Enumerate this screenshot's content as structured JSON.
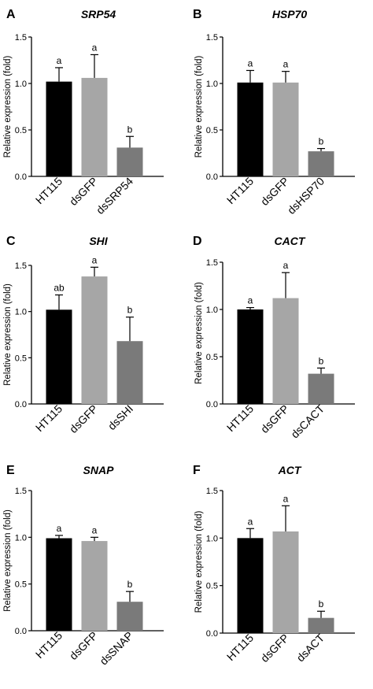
{
  "figure": {
    "colors": {
      "bar": [
        "#000000",
        "#a6a6a6",
        "#7a7a7a"
      ],
      "axis": "#000000"
    }
  },
  "chart_data": [
    {
      "type": "bar",
      "panel_letter": "A",
      "title": "SRP54",
      "ylabel": "Relative expression (fold)",
      "ylim": [
        0,
        1.5
      ],
      "yticks": [
        "0.0",
        "0.5",
        "1.0",
        "1.5"
      ],
      "categories": [
        "HT115",
        "dsGFP",
        "dsSRP54"
      ],
      "values": [
        1.02,
        1.06,
        0.31
      ],
      "errors": [
        0.15,
        0.25,
        0.12
      ],
      "significance": [
        "a",
        "a",
        "b"
      ]
    },
    {
      "type": "bar",
      "panel_letter": "B",
      "title": "HSP70",
      "ylabel": "Relative expression (fold)",
      "ylim": [
        0,
        1.5
      ],
      "yticks": [
        "0.0",
        "0.5",
        "1.0",
        "1.5"
      ],
      "categories": [
        "HT115",
        "dsGFP",
        "dsHSP70"
      ],
      "values": [
        1.01,
        1.01,
        0.27
      ],
      "errors": [
        0.13,
        0.12,
        0.03
      ],
      "significance": [
        "a",
        "a",
        "b"
      ]
    },
    {
      "type": "bar",
      "panel_letter": "C",
      "title": "SHI",
      "ylabel": "Relative expression (fold)",
      "ylim": [
        0,
        1.5
      ],
      "yticks": [
        "0.0",
        "0.5",
        "1.0",
        "1.5"
      ],
      "categories": [
        "HT115",
        "dsGFP",
        "dsSHI"
      ],
      "values": [
        1.02,
        1.38,
        0.68
      ],
      "errors": [
        0.16,
        0.1,
        0.26
      ],
      "significance": [
        "ab",
        "a",
        "b"
      ]
    },
    {
      "type": "bar",
      "panel_letter": "D",
      "title": "CACT",
      "ylabel": "Relative expression (fold)",
      "ylim": [
        0,
        1.5
      ],
      "yticks": [
        "0.0",
        "0.5",
        "1.0",
        "1.5"
      ],
      "categories": [
        "HT115",
        "dsGFP",
        "dsCACT"
      ],
      "values": [
        1.0,
        1.12,
        0.32
      ],
      "errors": [
        0.02,
        0.27,
        0.06
      ],
      "significance": [
        "a",
        "a",
        "b"
      ]
    },
    {
      "type": "bar",
      "panel_letter": "E",
      "title": "SNAP",
      "ylabel": "Relative expression (fold)",
      "ylim": [
        0,
        1.5
      ],
      "yticks": [
        "0.0",
        "0.5",
        "1.0",
        "1.5"
      ],
      "categories": [
        "HT115",
        "dsGFP",
        "dsSNAP"
      ],
      "values": [
        0.99,
        0.96,
        0.31
      ],
      "errors": [
        0.03,
        0.04,
        0.11
      ],
      "significance": [
        "a",
        "a",
        "b"
      ]
    },
    {
      "type": "bar",
      "panel_letter": "F",
      "title": "ACT",
      "ylabel": "Relative expression (fold)",
      "ylim": [
        0,
        1.5
      ],
      "yticks": [
        "0.0",
        "0.5",
        "1.0",
        "1.5"
      ],
      "categories": [
        "HT115",
        "dsGFP",
        "dsACT"
      ],
      "values": [
        1.0,
        1.07,
        0.16
      ],
      "errors": [
        0.1,
        0.27,
        0.07
      ],
      "significance": [
        "a",
        "a",
        "b"
      ]
    }
  ]
}
